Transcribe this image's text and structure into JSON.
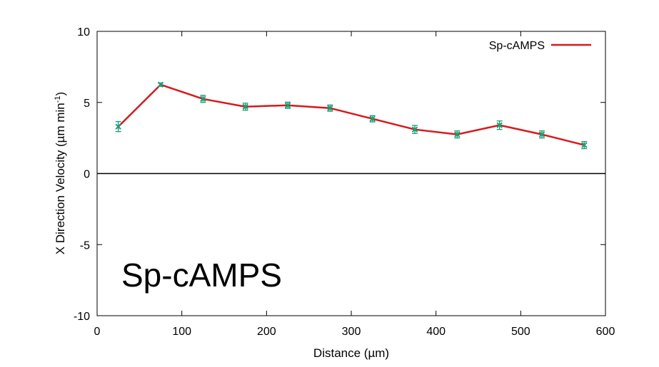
{
  "chart_data": {
    "type": "line",
    "title": "",
    "xlabel": "Distance (µm)",
    "ylabel": "X Direction Velocity (µm min",
    "ylabel_sup": "-1",
    "ylabel_close": ")",
    "xlim": [
      0,
      600
    ],
    "ylim": [
      -10,
      10
    ],
    "xticks": [
      0,
      100,
      200,
      300,
      400,
      500,
      600
    ],
    "yticks": [
      -10,
      -5,
      0,
      5,
      10
    ],
    "xtick_labels": [
      "0",
      "100",
      "200",
      "300",
      "400",
      "500",
      "600"
    ],
    "ytick_labels": [
      "-10",
      "-5",
      "0",
      "5",
      "10"
    ],
    "grid": false,
    "zero_line": true,
    "legend_position": "top-right",
    "series": [
      {
        "name": "Sp-cAMPS",
        "line_color": "#d7191c",
        "marker_color": "#1a9e77",
        "x": [
          25,
          75,
          125,
          175,
          225,
          275,
          325,
          375,
          425,
          475,
          525,
          575
        ],
        "y": [
          3.3,
          6.25,
          5.25,
          4.7,
          4.8,
          4.6,
          3.85,
          3.1,
          2.75,
          3.4,
          2.75,
          2.0
        ],
        "error": [
          0.35,
          0.12,
          0.25,
          0.25,
          0.22,
          0.22,
          0.22,
          0.28,
          0.25,
          0.3,
          0.25,
          0.25
        ]
      }
    ],
    "annotations": [
      "Sp-cAMPS"
    ]
  }
}
